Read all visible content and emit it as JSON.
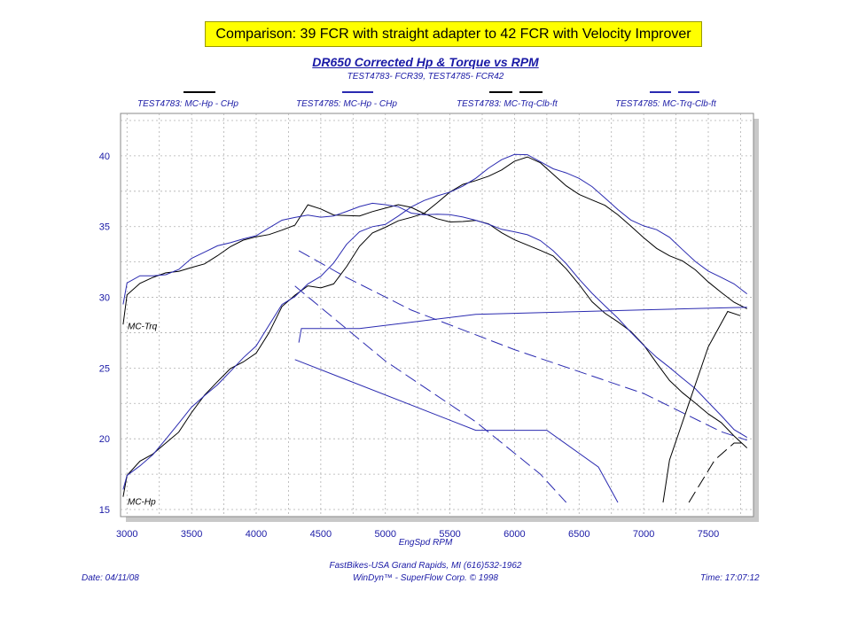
{
  "banner": "Comparison: 39 FCR with straight adapter to 42 FCR with Velocity Improver",
  "chart_data": {
    "type": "line",
    "title": "DR650 Corrected Hp & Torque vs RPM",
    "subtitle": "TEST4783- FCR39, TEST4785- FCR42",
    "xlabel": "EngSpd  RPM",
    "xlim": [
      2950,
      7850
    ],
    "ylim": [
      14.5,
      43
    ],
    "xticks": [
      3000,
      3500,
      4000,
      4500,
      5000,
      5500,
      6000,
      6500,
      7000,
      7500
    ],
    "yticks": [
      15,
      20,
      25,
      30,
      35,
      40
    ],
    "grid": true,
    "legend_position": "top",
    "axis_annotations": [
      {
        "text": "MC-Trq",
        "y": 28
      },
      {
        "text": "MC-Hp",
        "y": 15.6
      }
    ],
    "series": [
      {
        "name": "TEST4783: MC-Hp - CHp",
        "color": "#000000",
        "dash": "solid",
        "x": [
          2970,
          3000,
          3100,
          3200,
          3300,
          3400,
          3500,
          3600,
          3700,
          3800,
          3900,
          4000,
          4100,
          4200,
          4300,
          4400,
          4500,
          4600,
          4700,
          4800,
          4900,
          5000,
          5100,
          5200,
          5300,
          5400,
          5500,
          5600,
          5700,
          5800,
          5900,
          6000,
          6100,
          6200,
          6300,
          6400,
          6500,
          6600,
          6700,
          6800,
          6900,
          7000,
          7100,
          7200,
          7300,
          7400,
          7500,
          7600,
          7700,
          7800
        ],
        "y": [
          15.9,
          17.2,
          18.2,
          18.9,
          19.9,
          20.7,
          21.9,
          22.9,
          23.8,
          24.9,
          25.6,
          26.3,
          27.6,
          29.2,
          29.9,
          30.7,
          30.8,
          31.2,
          32.3,
          33.5,
          34.3,
          34.8,
          35.5,
          35.9,
          36.1,
          36.6,
          37.2,
          37.8,
          38.3,
          38.8,
          39.2,
          39.6,
          39.7,
          39.3,
          38.7,
          38.1,
          37.5,
          36.9,
          36.3,
          35.6,
          35.0,
          34.4,
          33.7,
          33.0,
          32.4,
          31.7,
          31.0,
          30.5,
          29.9,
          29.3
        ]
      },
      {
        "name": "TEST4785: MC-Hp - CHp",
        "color": "#2a2ab0",
        "dash": "solid",
        "x": [
          2970,
          3000,
          3100,
          3200,
          3300,
          3400,
          3500,
          3600,
          3700,
          3800,
          3900,
          4000,
          4100,
          4200,
          4300,
          4400,
          4500,
          4600,
          4700,
          4800,
          4900,
          5000,
          5100,
          5200,
          5300,
          5400,
          5500,
          5600,
          5700,
          5800,
          5900,
          6000,
          6100,
          6200,
          6300,
          6400,
          6500,
          6600,
          6700,
          6800,
          6900,
          7000,
          7100,
          7200,
          7300,
          7400,
          7500,
          7600,
          7700,
          7800
        ],
        "y": [
          16.2,
          17.4,
          18.3,
          19.1,
          20.0,
          20.9,
          22.0,
          23.0,
          24.0,
          25.0,
          25.8,
          26.4,
          27.8,
          29.4,
          30.2,
          31.2,
          31.6,
          32.3,
          33.5,
          34.5,
          35.1,
          35.4,
          35.9,
          36.3,
          36.6,
          37.0,
          37.5,
          38.1,
          38.6,
          39.1,
          39.5,
          39.9,
          40.1,
          39.8,
          39.3,
          38.8,
          38.2,
          37.6,
          37.0,
          36.4,
          35.7,
          35.1,
          34.6,
          34.0,
          33.3,
          32.7,
          32.1,
          31.5,
          30.8,
          30.0
        ]
      },
      {
        "name": "TEST4783: MC-Trq-Clb-ft",
        "color": "#000000",
        "dash": "solid",
        "x": [
          2970,
          3000,
          3100,
          3200,
          3300,
          3400,
          3500,
          3600,
          3700,
          3800,
          3900,
          4000,
          4100,
          4200,
          4300,
          4400,
          4500,
          4600,
          4700,
          4800,
          4900,
          5000,
          5100,
          5200,
          5300,
          5400,
          5500,
          5600,
          5700,
          5800,
          5900,
          6000,
          6100,
          6200,
          6300,
          6400,
          6500,
          6600,
          6700,
          6800,
          6900,
          7000,
          7100,
          7200,
          7300,
          7400,
          7500,
          7600,
          7700,
          7800
        ],
        "y": [
          28.3,
          30.4,
          31.0,
          31.2,
          31.5,
          31.8,
          32.3,
          32.6,
          33.0,
          33.4,
          33.8,
          34.2,
          34.6,
          35.0,
          35.2,
          36.4,
          36.0,
          35.7,
          35.9,
          36.0,
          36.2,
          36.2,
          36.3,
          36.2,
          36.0,
          35.8,
          35.5,
          35.3,
          35.2,
          35.0,
          34.6,
          34.3,
          33.9,
          33.3,
          32.7,
          31.8,
          30.9,
          29.9,
          29.1,
          28.3,
          27.4,
          26.4,
          25.3,
          24.3,
          23.5,
          22.6,
          21.6,
          20.9,
          20.1,
          19.5
        ]
      },
      {
        "name": "TEST4785: MC-Trq-Clb-ft",
        "color": "#2a2ab0",
        "dash": "solid",
        "x": [
          2970,
          3000,
          3100,
          3200,
          3300,
          3400,
          3500,
          3600,
          3700,
          3800,
          3900,
          4000,
          4100,
          4200,
          4300,
          4400,
          4500,
          4600,
          4700,
          4800,
          4900,
          5000,
          5100,
          5200,
          5300,
          5400,
          5500,
          5600,
          5700,
          5800,
          5900,
          6000,
          6100,
          6200,
          6300,
          6400,
          6500,
          6600,
          6700,
          6800,
          6900,
          7000,
          7100,
          7200,
          7300,
          7400,
          7500,
          7600,
          7700,
          7800
        ],
        "y": [
          29.5,
          30.8,
          31.3,
          31.5,
          31.8,
          32.2,
          32.8,
          33.0,
          33.4,
          33.8,
          34.3,
          34.6,
          35.0,
          35.3,
          35.4,
          35.7,
          35.8,
          36.0,
          36.2,
          36.3,
          36.4,
          36.4,
          36.5,
          36.2,
          36.0,
          35.8,
          35.6,
          35.5,
          35.5,
          35.4,
          35.0,
          34.6,
          34.2,
          33.8,
          33.3,
          32.6,
          31.5,
          30.3,
          29.2,
          28.3,
          27.5,
          26.8,
          26.0,
          25.1,
          24.1,
          23.3,
          22.5,
          21.8,
          20.9,
          20.2
        ]
      },
      {
        "name": "",
        "color": "#2a2ab0",
        "dash": "solid",
        "x": [
          4300,
          5700,
          6250,
          6650,
          6800
        ],
        "y": [
          25.6,
          20.6,
          20.6,
          18.0,
          15.5
        ]
      },
      {
        "name": "",
        "color": "#2a2ab0",
        "dash": "solid",
        "x": [
          4330,
          4350,
          4800,
          5700,
          7800
        ],
        "y": [
          26.8,
          27.8,
          27.8,
          28.8,
          29.3
        ]
      },
      {
        "name": "",
        "color": "#2a2ab0",
        "dash": "longdash",
        "x": [
          4330,
          4700,
          5200,
          6000,
          7000,
          7600,
          7800
        ],
        "y": [
          33.3,
          31.4,
          29.1,
          26.3,
          23.2,
          20.5,
          19.9
        ]
      },
      {
        "name": "",
        "color": "#2a2ab0",
        "dash": "longdash",
        "x": [
          4300,
          5000,
          5700,
          6200,
          6400
        ],
        "y": [
          30.8,
          25.5,
          21.2,
          17.5,
          15.5
        ]
      },
      {
        "name": "",
        "color": "#000000",
        "dash": "solid",
        "x": [
          7150,
          7200,
          7350,
          7500,
          7650,
          7750
        ],
        "y": [
          15.5,
          18.5,
          22.5,
          26.5,
          29.0,
          28.7
        ]
      },
      {
        "name": "",
        "color": "#000000",
        "dash": "longdash",
        "x": [
          7350,
          7550,
          7700,
          7800
        ],
        "y": [
          15.5,
          18.5,
          19.7,
          19.7
        ]
      }
    ]
  },
  "footer": {
    "shop": "FastBikes-USA Grand Rapids, MI (616)532-1962",
    "software": "WinDyn™ - SuperFlow Corp. © 1998",
    "date": "Date: 04/11/08",
    "time": "Time: 17:07:12"
  }
}
